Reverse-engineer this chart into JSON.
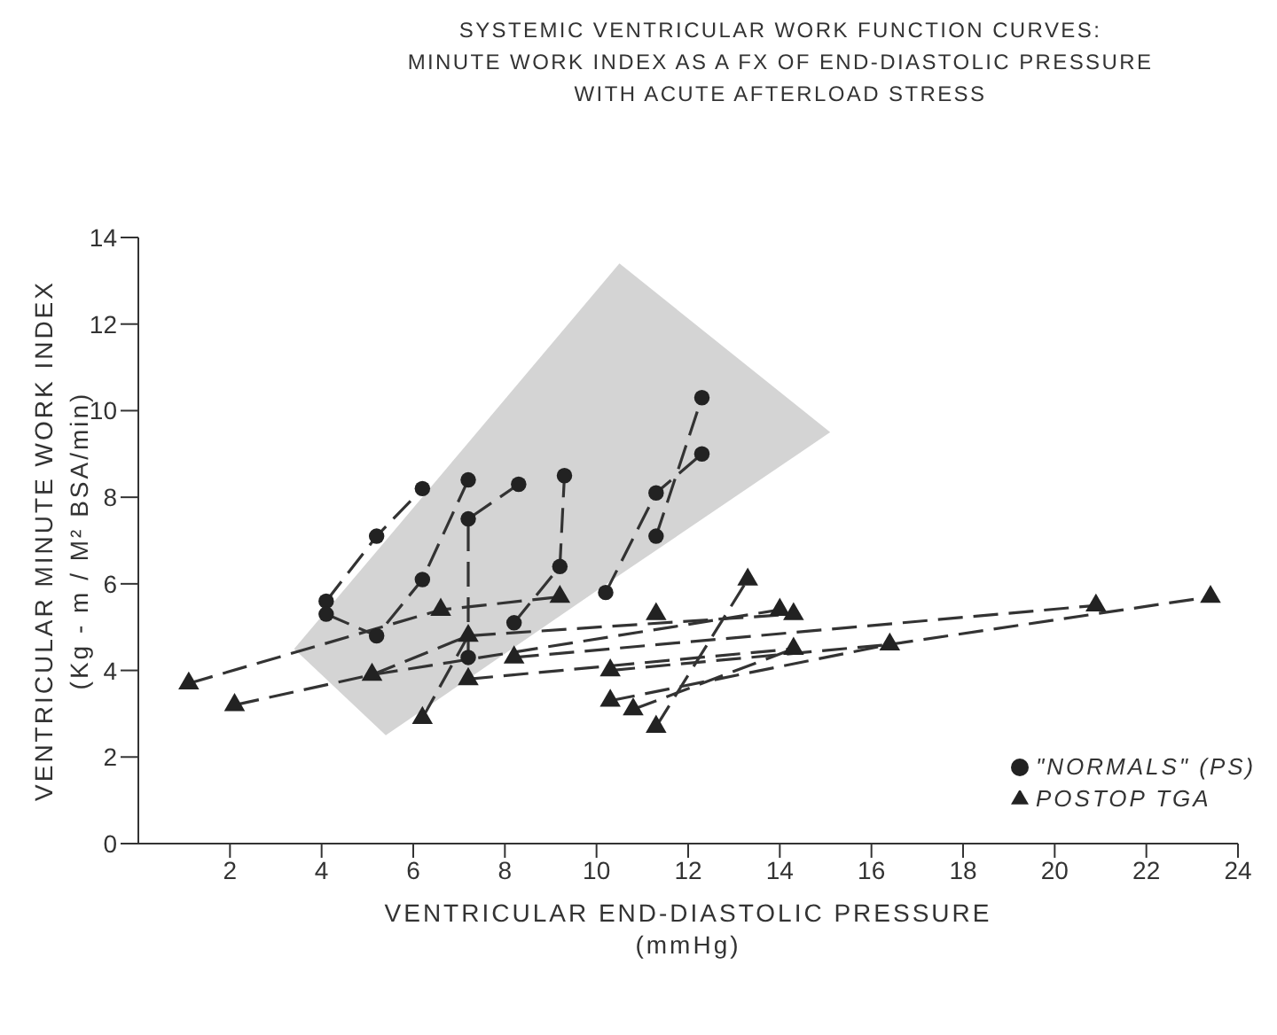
{
  "chart_data": {
    "type": "scatter",
    "title": "SYSTEMIC VENTRICULAR WORK FUNCTION CURVES:\nMINUTE WORK INDEX AS A FX OF END-DIASTOLIC PRESSURE\nWITH ACUTE AFTERLOAD STRESS",
    "xlabel": "VENTRICULAR END-DIASTOLIC PRESSURE\n(mmHg)",
    "ylabel": "VENTRICULAR MINUTE WORK INDEX\n(Kg - m / M² BSA/min)",
    "xlim": [
      0,
      24
    ],
    "ylim": [
      0,
      14
    ],
    "xticks": [
      2,
      4,
      6,
      8,
      10,
      12,
      14,
      16,
      18,
      20,
      22,
      24
    ],
    "yticks": [
      0,
      2,
      4,
      6,
      8,
      10,
      12,
      14
    ],
    "legend": "bottom right",
    "series": [
      {
        "type": "area",
        "color": "#b8b8b8",
        "x": [
          3.4,
          5.4,
          10.5,
          15.1
        ],
        "values": [
          null,
          null,
          null,
          null
        ],
        "lower": [
          4.5,
          2.5,
          6.2,
          9.5
        ],
        "upper": [
          4.5,
          7.0,
          13.4,
          9.5
        ]
      },
      {
        "type": "line",
        "color": "#333333",
        "line_style": "dashed",
        "x": [
          4.1,
          5.2,
          6.2
        ],
        "values": [
          5.6,
          7.1,
          8.2
        ]
      },
      {
        "type": "line",
        "color": "#333333",
        "line_style": "dashed",
        "x": [
          4.1,
          5.2,
          6.2,
          7.2
        ],
        "values": [
          5.3,
          4.8,
          6.1,
          8.4
        ]
      },
      {
        "type": "line",
        "color": "#333333",
        "line_style": "dashed",
        "x": [
          7.2,
          7.2,
          8.3
        ],
        "values": [
          4.3,
          7.5,
          8.3
        ]
      },
      {
        "type": "line",
        "color": "#333333",
        "line_style": "dashed",
        "x": [
          8.2,
          9.2,
          9.3
        ],
        "values": [
          5.1,
          6.4,
          8.5
        ]
      },
      {
        "type": "line",
        "color": "#333333",
        "line_style": "dashed",
        "x": [
          10.2,
          11.3,
          12.3
        ],
        "values": [
          5.8,
          8.1,
          9.0
        ]
      },
      {
        "type": "line",
        "color": "#333333",
        "line_style": "dashed",
        "x": [
          11.3,
          12.3
        ],
        "values": [
          7.1,
          10.3
        ]
      },
      {
        "type": "line",
        "color": "#333333",
        "line_style": "dashed",
        "x": [
          1.1,
          6.6,
          9.2
        ],
        "values": [
          3.7,
          5.4,
          5.7
        ]
      },
      {
        "type": "line",
        "color": "#333333",
        "line_style": "dashed",
        "x": [
          2.1,
          5.1,
          14.0
        ],
        "values": [
          3.2,
          3.9,
          5.4
        ]
      },
      {
        "type": "line",
        "color": "#333333",
        "line_style": "dashed",
        "x": [
          5.1,
          7.2,
          14.3
        ],
        "values": [
          3.9,
          4.8,
          5.3
        ]
      },
      {
        "type": "line",
        "color": "#333333",
        "line_style": "dashed",
        "x": [
          7.2,
          14.3
        ],
        "values": [
          3.8,
          4.5
        ]
      },
      {
        "type": "line",
        "color": "#333333",
        "line_style": "dashed",
        "x": [
          8.2,
          20.9
        ],
        "values": [
          4.3,
          5.5
        ]
      },
      {
        "type": "line",
        "color": "#333333",
        "line_style": "dashed",
        "x": [
          10.3,
          16.4,
          23.4
        ],
        "values": [
          3.3,
          4.6,
          5.7
        ]
      },
      {
        "type": "line",
        "color": "#333333",
        "line_style": "dashed",
        "x": [
          10.8,
          14.3
        ],
        "values": [
          3.1,
          4.5
        ]
      },
      {
        "type": "line",
        "color": "#333333",
        "line_style": "dashed",
        "x": [
          11.3,
          13.3
        ],
        "values": [
          2.7,
          6.1
        ]
      },
      {
        "type": "line",
        "color": "#333333",
        "line_style": "dashed",
        "x": [
          6.2,
          7.2
        ],
        "values": [
          2.9,
          4.8
        ]
      },
      {
        "type": "line",
        "color": "#333333",
        "line_style": "dashed",
        "x": [
          10.3,
          16.4
        ],
        "values": [
          4.0,
          4.6
        ]
      },
      {
        "type": "scatter",
        "name": "\"NORMALS\" (PS)",
        "color": "#222222",
        "marker": "circle",
        "x": [
          4.1,
          4.1,
          5.2,
          5.2,
          6.2,
          6.2,
          7.2,
          7.2,
          8.3,
          9.3,
          8.2,
          9.2,
          10.2,
          11.3,
          11.3,
          12.3,
          12.3,
          7.2
        ],
        "values": [
          5.6,
          5.3,
          7.1,
          4.8,
          8.2,
          6.1,
          8.4,
          7.5,
          8.3,
          8.5,
          5.1,
          6.4,
          5.8,
          8.1,
          7.1,
          9.0,
          10.3,
          4.3
        ]
      },
      {
        "type": "scatter",
        "name": "POSTOP TGA",
        "color": "#222222",
        "marker": "triangle",
        "x": [
          1.1,
          2.1,
          6.6,
          9.2,
          5.1,
          7.2,
          7.2,
          6.2,
          8.2,
          11.3,
          10.3,
          10.3,
          10.8,
          11.3,
          13.3,
          14.0,
          14.3,
          14.3,
          16.4,
          20.9,
          23.4
        ],
        "values": [
          3.7,
          3.2,
          5.4,
          5.7,
          3.9,
          4.8,
          3.8,
          2.9,
          4.3,
          5.3,
          4.0,
          3.3,
          3.1,
          2.7,
          6.1,
          5.4,
          5.3,
          4.5,
          4.6,
          5.5,
          5.7
        ]
      }
    ]
  }
}
